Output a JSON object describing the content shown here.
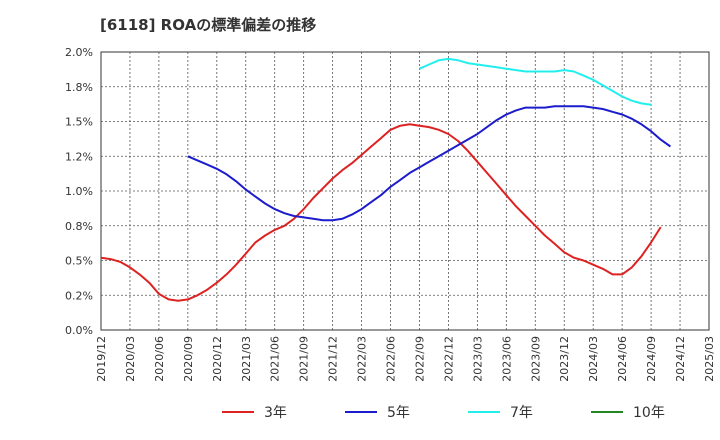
{
  "chart_data": {
    "type": "line",
    "title": "[6118]  ROAの標準偏差の推移",
    "xlabel": "",
    "ylabel": "",
    "ylim": [
      0,
      2.0
    ],
    "yticks": [
      "0.0%",
      "0.2%",
      "0.5%",
      "0.8%",
      "1.0%",
      "1.2%",
      "1.5%",
      "1.8%",
      "2.0%"
    ],
    "x_ticks": [
      "2019/12",
      "2020/03",
      "2020/06",
      "2020/09",
      "2020/12",
      "2021/03",
      "2021/06",
      "2021/09",
      "2021/12",
      "2022/03",
      "2022/06",
      "2022/09",
      "2022/12",
      "2023/03",
      "2023/06",
      "2023/09",
      "2023/12",
      "2024/03",
      "2024/06",
      "2024/09",
      "2024/12",
      "2025/03"
    ],
    "grid": true,
    "legend_position": "bottom",
    "series": [
      {
        "name": "3年",
        "color": "#dd2222",
        "start_index": 0,
        "values": [
          0.52,
          0.51,
          0.49,
          0.45,
          0.4,
          0.34,
          0.26,
          0.22,
          0.21,
          0.22,
          0.25,
          0.29,
          0.34,
          0.4,
          0.47,
          0.55,
          0.63,
          0.68,
          0.72,
          0.75,
          0.8,
          0.87,
          0.95,
          1.02,
          1.09,
          1.15,
          1.2,
          1.26,
          1.32,
          1.38,
          1.44,
          1.47,
          1.48,
          1.47,
          1.46,
          1.44,
          1.41,
          1.36,
          1.29,
          1.21,
          1.13,
          1.05,
          0.97,
          0.89,
          0.82,
          0.75,
          0.68,
          0.62,
          0.56,
          0.52,
          0.5,
          0.47,
          0.44,
          0.4,
          0.4,
          0.45,
          0.53,
          0.63,
          0.74
        ]
      },
      {
        "name": "5年",
        "color": "#1c1ccc",
        "start_index": 9,
        "values": [
          1.25,
          1.22,
          1.19,
          1.16,
          1.12,
          1.07,
          1.01,
          0.96,
          0.91,
          0.87,
          0.84,
          0.82,
          0.81,
          0.8,
          0.79,
          0.79,
          0.8,
          0.83,
          0.87,
          0.92,
          0.97,
          1.03,
          1.08,
          1.13,
          1.17,
          1.21,
          1.25,
          1.29,
          1.33,
          1.37,
          1.41,
          1.46,
          1.51,
          1.55,
          1.58,
          1.6,
          1.6,
          1.6,
          1.61,
          1.61,
          1.61,
          1.61,
          1.6,
          1.59,
          1.57,
          1.55,
          1.52,
          1.48,
          1.43,
          1.37,
          1.32
        ]
      },
      {
        "name": "7年",
        "color": "#22eeee",
        "start_index": 33,
        "values": [
          1.88,
          1.91,
          1.94,
          1.95,
          1.94,
          1.92,
          1.91,
          1.9,
          1.89,
          1.88,
          1.87,
          1.86,
          1.86,
          1.86,
          1.86,
          1.87,
          1.86,
          1.83,
          1.8,
          1.76,
          1.72,
          1.68,
          1.65,
          1.63,
          1.62
        ]
      },
      {
        "name": "10年",
        "color": "#228822",
        "start_index": 0,
        "values": []
      }
    ]
  }
}
